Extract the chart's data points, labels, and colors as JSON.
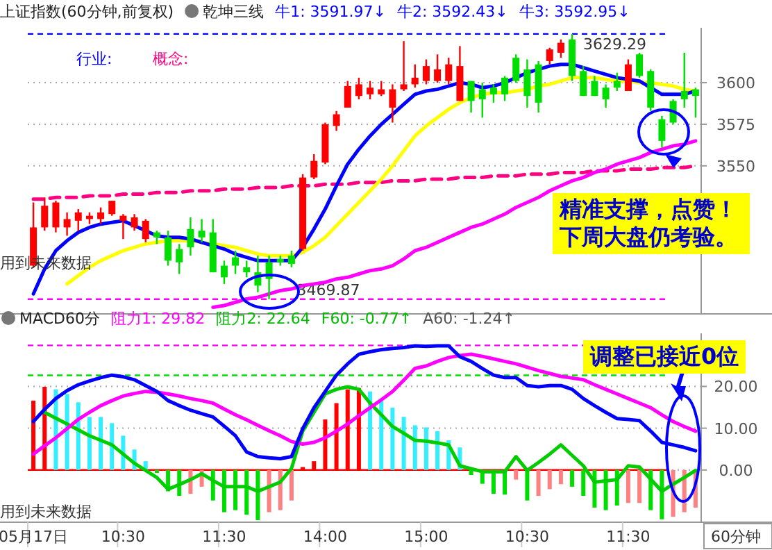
{
  "chart_data": [
    {
      "type": "candlestick",
      "title": "上证指数(60分钟,前复权)",
      "subtitle": "乾坤三线",
      "tick_labels": "y",
      "grid": "y",
      "annotations": [
        "牛1: 3591.97↓",
        "牛2: 3592.43↓",
        "牛3: 3592.95↓",
        "行业:",
        "概念:",
        "用到未来数据",
        "精准支撑，点赞！下周大盘仍考验。"
      ],
      "categories": [
        null,
        null,
        null,
        null,
        null,
        null,
        null,
        null,
        null,
        null,
        null,
        null,
        null,
        null,
        null,
        null,
        null,
        null,
        null,
        null,
        null,
        null,
        null,
        null,
        null,
        null,
        null,
        null,
        null,
        null,
        null,
        null,
        null,
        null,
        null,
        null,
        null,
        null,
        null,
        null,
        null,
        null,
        null,
        null,
        null,
        null,
        null,
        null,
        null,
        null,
        null,
        null,
        null,
        null,
        null,
        null,
        null,
        null,
        null,
        null
      ],
      "ylim": [
        3461,
        3633
      ],
      "yticks": [
        3550,
        3575,
        3600
      ],
      "ref_lines": [
        {
          "axis": "y",
          "value": 3629.29,
          "label": "3629.29",
          "color": "#0000ff",
          "line_style": "dashed"
        },
        {
          "axis": "y",
          "value": 3469.87,
          "label": "3469.87",
          "color": "#ff00ff",
          "line_style": "dashed"
        }
      ],
      "ohlc": [
        [
          3490,
          3528,
          3489,
          3513
        ],
        [
          3513,
          3531,
          3511,
          3526
        ],
        [
          3513,
          3529,
          3510,
          3528
        ],
        [
          3513,
          3522,
          3508,
          3518
        ],
        [
          3517,
          3524,
          3511,
          3522
        ],
        [
          3518,
          3522,
          3515,
          3520
        ],
        [
          3518,
          3525,
          3515,
          3522
        ],
        [
          3521,
          3529,
          3520,
          3529
        ],
        [
          3517,
          3521,
          3506,
          3520
        ],
        [
          3513,
          3521,
          3511,
          3519
        ],
        [
          3506,
          3518,
          3504,
          3517
        ],
        [
          3510,
          3511,
          3503,
          3507
        ],
        [
          3507,
          3511,
          3490,
          3493
        ],
        [
          3500,
          3503,
          3485,
          3492
        ],
        [
          3512,
          3519,
          3496,
          3501
        ],
        [
          3511,
          3518,
          3504,
          3507
        ],
        [
          3510,
          3518,
          3486,
          3486
        ],
        [
          3490,
          3493,
          3479,
          3483
        ],
        [
          3495,
          3499,
          3485,
          3490
        ],
        [
          3489,
          3493,
          3483,
          3486
        ],
        [
          3486,
          3496,
          3474,
          3478
        ],
        [
          3492,
          3496,
          3469.87,
          3482
        ],
        [
          3494,
          3496,
          3490,
          3492
        ],
        [
          3496,
          3499,
          3489,
          3491
        ],
        [
          3500,
          3545,
          3499,
          3543
        ],
        [
          3543,
          3557,
          3542,
          3553
        ],
        [
          3552,
          3576,
          3551,
          3575
        ],
        [
          3574,
          3583,
          3571,
          3581
        ],
        [
          3585,
          3601,
          3585,
          3598
        ],
        [
          3592,
          3603,
          3590,
          3599
        ],
        [
          3593,
          3601,
          3590,
          3597
        ],
        [
          3593,
          3601,
          3592,
          3596
        ],
        [
          3585,
          3599,
          3576,
          3596
        ],
        [
          3596,
          3625,
          3595,
          3599
        ],
        [
          3599,
          3611,
          3597,
          3603
        ],
        [
          3601,
          3614,
          3599,
          3610
        ],
        [
          3601,
          3617,
          3600,
          3608
        ],
        [
          3601,
          3615,
          3599,
          3611
        ],
        [
          3589,
          3622,
          3589,
          3610
        ],
        [
          3601,
          3601,
          3582,
          3589
        ],
        [
          3596,
          3600,
          3579,
          3590
        ],
        [
          3597,
          3599,
          3588,
          3593
        ],
        [
          3603,
          3604,
          3589,
          3593
        ],
        [
          3615,
          3617,
          3600,
          3601
        ],
        [
          3608,
          3614,
          3585,
          3592
        ],
        [
          3611,
          3613,
          3582,
          3588
        ],
        [
          3613,
          3621,
          3611,
          3620
        ],
        [
          3618,
          3626,
          3615,
          3624
        ],
        [
          3626,
          3629.29,
          3601,
          3604
        ],
        [
          3607,
          3610,
          3592,
          3592
        ],
        [
          3601,
          3604,
          3592,
          3592
        ],
        [
          3597,
          3599,
          3585,
          3590
        ],
        [
          3601,
          3606,
          3595,
          3597
        ],
        [
          3595,
          3614,
          3595,
          3611
        ],
        [
          3617,
          3618,
          3603,
          3604
        ],
        [
          3607,
          3608,
          3583,
          3585
        ],
        [
          3578,
          3580,
          3561,
          3565
        ],
        [
          3589,
          3590,
          3575,
          3576
        ],
        [
          3595,
          3618,
          3585,
          3590
        ],
        [
          3596,
          3597,
          3579,
          3592
        ]
      ],
      "series": [
        {
          "type": "line",
          "color": "#ff0080",
          "line_style": "dashed",
          "values": [
            3530,
            3530,
            3531,
            3531,
            3531,
            3532,
            3532,
            3532,
            3533,
            3533,
            3533,
            3534,
            3534,
            3534,
            3535,
            3535,
            3535,
            3536,
            3536,
            3536,
            3537,
            3537,
            3537,
            3538,
            3538,
            3538,
            3539,
            3539,
            3539,
            3540,
            3540,
            3540,
            3541,
            3541,
            3541,
            3542,
            3542,
            3542,
            3543,
            3543,
            3543,
            3544,
            3544,
            3544,
            3545,
            3545,
            3545,
            3546,
            3546,
            3546,
            3547,
            3547,
            3547,
            3548,
            3548,
            3548,
            3549,
            3549,
            3549,
            3550
          ]
        },
        {
          "type": "line",
          "color": "#ff00ff",
          "values": [
            null,
            null,
            null,
            null,
            null,
            null,
            null,
            null,
            null,
            null,
            null,
            null,
            null,
            null,
            null,
            null,
            3465,
            3466,
            3468,
            3470,
            3471,
            3473,
            3475,
            3476,
            3478,
            3479,
            3480,
            3482,
            3483,
            3485,
            3487,
            3488,
            3490,
            3494,
            3499,
            3501,
            3504,
            3507,
            3510,
            3513,
            3515,
            3518,
            3521,
            3525,
            3528,
            3531,
            3535,
            3538,
            3541,
            3543,
            3546,
            3548,
            3551,
            3553,
            3555,
            3558,
            3560,
            3562,
            3563,
            3565
          ]
        },
        {
          "type": "line",
          "color": "#ffff00",
          "values": [
            null,
            null,
            null,
            3479,
            3484,
            3489,
            3493,
            3496,
            3499,
            3501,
            3503,
            3504,
            3505,
            3505,
            3505,
            3504,
            3503,
            3502,
            3501,
            3499,
            3497,
            3496,
            3496,
            3496,
            3498,
            3502,
            3507,
            3514,
            3521,
            3528,
            3535,
            3542,
            3550,
            3559,
            3568,
            3574,
            3579,
            3584,
            3588,
            3591,
            3593,
            3594,
            3594,
            3595,
            3596,
            3598,
            3599,
            3601,
            3603,
            3603,
            3603,
            3602,
            3601,
            3601,
            3600,
            3600,
            3599,
            3598,
            3596,
            3595
          ]
        },
        {
          "type": "line",
          "color": "#0000ff",
          "values": [
            3473,
            3488,
            3499,
            3505,
            3510,
            3513,
            3515,
            3516,
            3517,
            3514,
            3511,
            3508,
            3507,
            3507,
            3506,
            3504,
            3502,
            3500,
            3497,
            3495,
            3493,
            3493,
            3493,
            3493,
            3501,
            3512,
            3524,
            3538,
            3551,
            3560,
            3568,
            3575,
            3581,
            3587,
            3593,
            3595,
            3596,
            3598,
            3600,
            3599,
            3597,
            3598,
            3600,
            3603,
            3606,
            3608,
            3610,
            3611,
            3611,
            3609,
            3607,
            3605,
            3603,
            3602,
            3601,
            3597,
            3593,
            3593,
            3593,
            3595
          ]
        }
      ]
    },
    {
      "type": "bar",
      "title": "MACD60分",
      "xlabel": "60分钟",
      "grid": "y",
      "annotations": [
        "阻力1: 29.82",
        "阻力2: 22.64",
        "F60: -0.77↑",
        "A60: -1.24↑",
        "用到未来数据",
        "调整已接近0位"
      ],
      "categories": [
        "05月17日",
        null,
        null,
        null,
        null,
        null,
        null,
        null,
        "10:30",
        null,
        null,
        null,
        null,
        null,
        null,
        null,
        null,
        "11:30",
        null,
        null,
        null,
        null,
        null,
        null,
        null,
        null,
        "14:00",
        null,
        null,
        null,
        null,
        null,
        null,
        null,
        null,
        "15:00",
        null,
        null,
        null,
        null,
        null,
        null,
        null,
        null,
        "10:30",
        null,
        null,
        null,
        null,
        null,
        null,
        null,
        null,
        "11:30",
        null,
        null,
        null,
        null,
        null,
        null
      ],
      "ylim": [
        -12.5,
        32.7
      ],
      "yticks": [
        {
          "value": 0,
          "label": "0.00"
        },
        {
          "value": 10,
          "label": "10.00"
        },
        {
          "value": 20,
          "label": "20.00"
        }
      ],
      "ref_lines": [
        {
          "axis": "y",
          "value": 29.82,
          "color": "#ff00ff",
          "line_style": "dashed"
        },
        {
          "axis": "y",
          "value": 22.64,
          "color": "#00dd00",
          "line_style": "dashed"
        },
        {
          "axis": "y",
          "value": 0,
          "color": "#ff0000",
          "line_style": "solid"
        }
      ],
      "series": [
        {
          "type": "bar",
          "values": [
            16.6,
            19.9,
            19.3,
            18.2,
            16.2,
            12.7,
            12.7,
            11.2,
            8.2,
            4.9,
            2.1,
            -0.7,
            -5.1,
            -6.2,
            -5.7,
            -4,
            -7.3,
            -10.1,
            -9.6,
            -10.7,
            -12,
            -10.1,
            -9.6,
            -7.3,
            0.7,
            2.1,
            12.1,
            16,
            19.3,
            19.6,
            18.8,
            16.6,
            14.9,
            12.7,
            10.7,
            10.2,
            9.3,
            7.1,
            5.4,
            -1.2,
            -3.3,
            -5.7,
            -5.9,
            -2.3,
            -7.3,
            -6.2,
            -4.6,
            -3.4,
            -4,
            -6.2,
            -9,
            -9.6,
            -8.5,
            -7.9,
            -7.9,
            -9.6,
            -11.8,
            -11.2,
            -10.1,
            -9
          ],
          "colors": [
            "#ff0000",
            "#ff0000",
            "#33eeff",
            "#33eeff",
            "#33eeff",
            "#33eeff",
            "#33eeff",
            "#33eeff",
            "#33eeff",
            "#33eeff",
            "#33eeff",
            "#00dd00",
            "#00dd00",
            "#00dd00",
            "#ff8080",
            "#ff8080",
            "#00dd00",
            "#00dd00",
            "#00dd00",
            "#00dd00",
            "#00dd00",
            "#ff8080",
            "#ff8080",
            "#ff8080",
            "#ff0000",
            "#ff0000",
            "#ff0000",
            "#ff0000",
            "#ff0000",
            "#ff0000",
            "#33eeff",
            "#33eeff",
            "#33eeff",
            "#33eeff",
            "#33eeff",
            "#33eeff",
            "#33eeff",
            "#33eeff",
            "#33eeff",
            "#00dd00",
            "#00dd00",
            "#00dd00",
            "#00dd00",
            "#ff8080",
            "#00dd00",
            "#ff8080",
            "#ff8080",
            "#ff8080",
            "#00dd00",
            "#00dd00",
            "#00dd00",
            "#00dd00",
            "#00dd00",
            "#ff8080",
            "#ff8080",
            "#00dd00",
            "#00dd00",
            "#ff8080",
            "#ff8080",
            "#ff8080"
          ]
        },
        {
          "type": "line",
          "color": "#00cc00",
          "values": [
            null,
            13.8,
            12.4,
            11,
            9.6,
            8.2,
            7.1,
            6,
            3.8,
            1.6,
            -0.1,
            -1.8,
            -4.6,
            -3.5,
            -2.3,
            -0.9,
            -2.5,
            -4,
            -4,
            -4,
            -5.1,
            -4,
            -2.9,
            0.4,
            9.3,
            13.8,
            18.2,
            19.3,
            19.9,
            19.3,
            16,
            13.2,
            10.4,
            8.8,
            7.1,
            6.9,
            6.5,
            6,
            1,
            0.3,
            -0.4,
            -0.4,
            -0.4,
            3.2,
            -0.1,
            1.8,
            3.8,
            6,
            3.5,
            1,
            -2.9,
            -2.6,
            -2.3,
            1,
            0.7,
            -2.2,
            -5.1,
            -3.4,
            -1.8,
            -0.1
          ]
        },
        {
          "type": "line",
          "color": "#ff00ff",
          "values": [
            3.8,
            5.8,
            7.7,
            9.9,
            12.1,
            13.8,
            15.4,
            16.6,
            17.7,
            18.3,
            18.8,
            18.6,
            18.2,
            17.7,
            17.1,
            16.6,
            16,
            14.6,
            13.2,
            12,
            10.7,
            9.4,
            8.2,
            6.8,
            6.2,
            6.6,
            7.7,
            9.3,
            11,
            13,
            14.9,
            16.8,
            18.8,
            21.5,
            24.3,
            24.9,
            26,
            26.9,
            27.4,
            27.7,
            27.2,
            26.6,
            26,
            25.4,
            24.6,
            23.8,
            23.1,
            22.4,
            22,
            21.6,
            20.4,
            19.3,
            18.2,
            17.1,
            16,
            14.9,
            13.2,
            11.6,
            10.4,
            9.3
          ]
        },
        {
          "type": "line",
          "color": "#0000ff",
          "values": [
            11.6,
            14.5,
            17.1,
            19,
            20.4,
            21.3,
            22.1,
            22.7,
            22.3,
            21.6,
            20.2,
            18.8,
            16.6,
            15.4,
            14.3,
            13.5,
            12.7,
            10.5,
            8.2,
            4.3,
            3.2,
            2.9,
            2.7,
            3.2,
            9.9,
            14.9,
            18.8,
            22.7,
            25.4,
            27.7,
            28.3,
            28.8,
            29.1,
            29.3,
            29.7,
            29.6,
            29.7,
            29.7,
            27.1,
            26,
            24.3,
            22.7,
            22.1,
            22.1,
            20.2,
            19.9,
            20.2,
            20.2,
            19.3,
            17.1,
            15.4,
            13.8,
            12.3,
            12.1,
            11.8,
            9.3,
            6.6,
            6,
            5.4,
            4.6
          ]
        }
      ]
    }
  ]
}
